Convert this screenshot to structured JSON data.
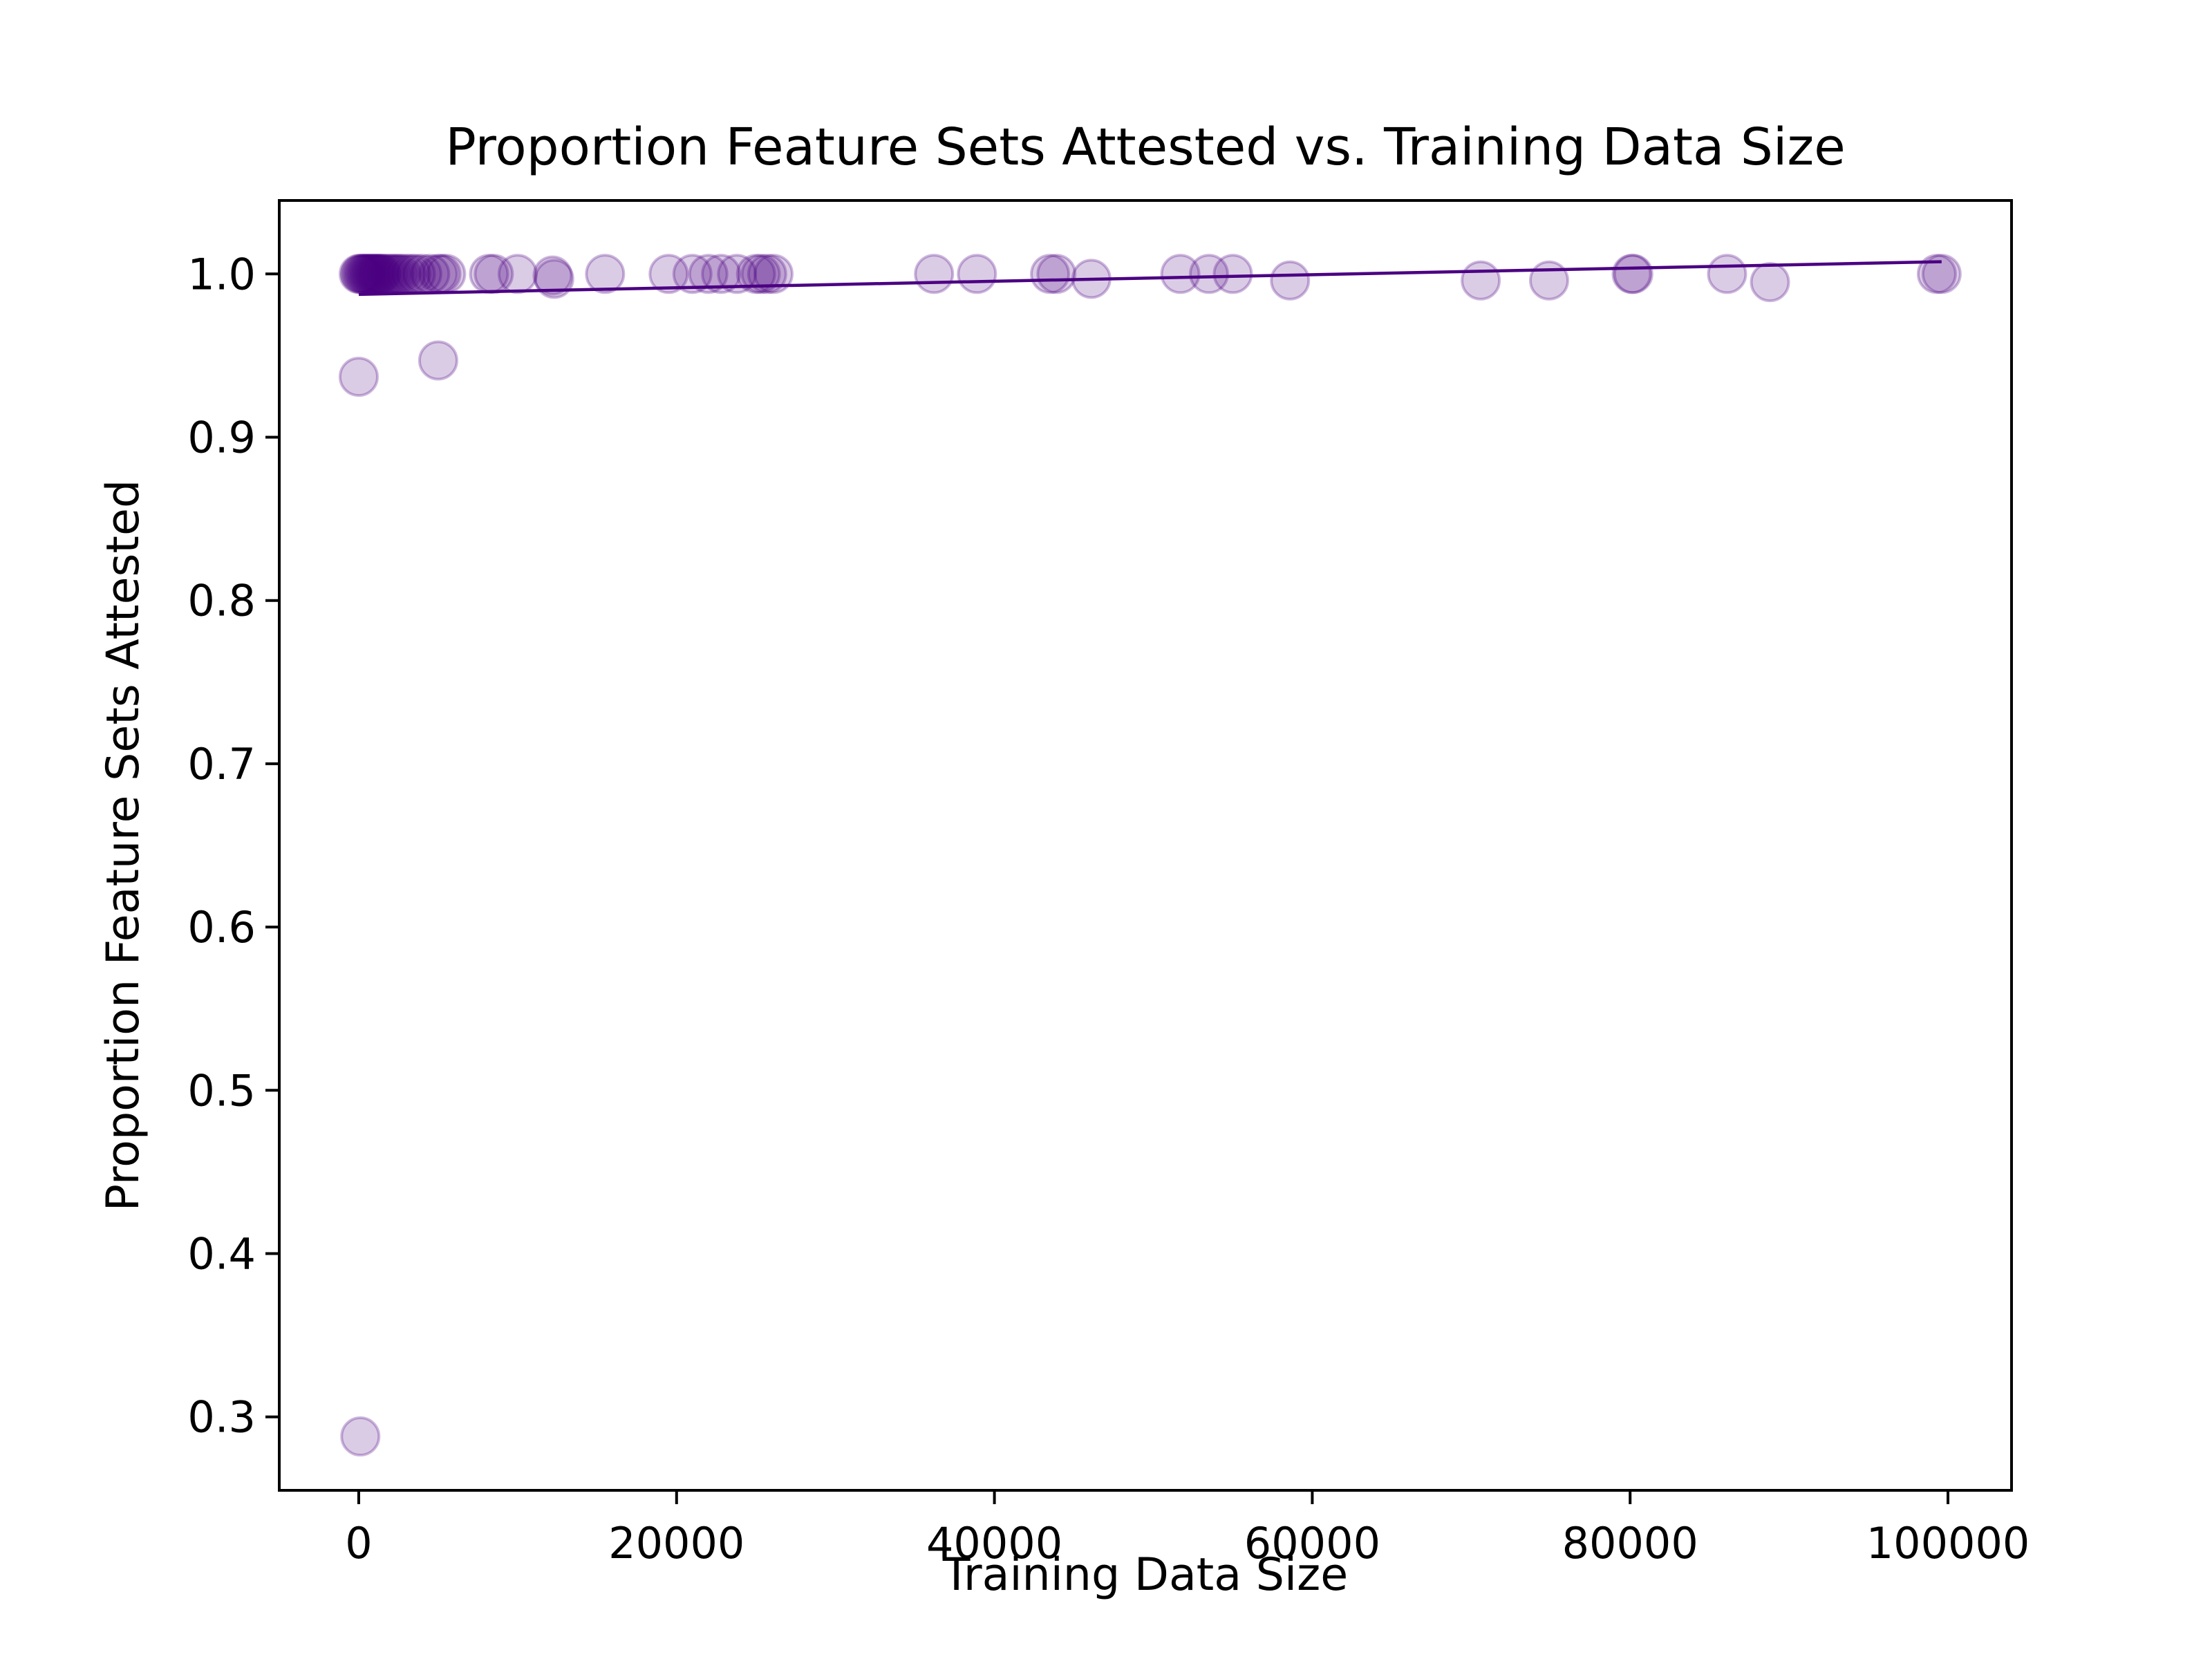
{
  "chart_data": {
    "type": "scatter",
    "title": "Proportion Feature Sets Attested vs. Training Data Size",
    "xlabel": "Training Data Size",
    "ylabel": "Proportion Feature Sets Attested",
    "xlim": [
      -5000,
      104000
    ],
    "ylim": [
      0.255,
      1.045
    ],
    "xticks": [
      0,
      20000,
      40000,
      60000,
      80000,
      100000
    ],
    "xtick_labels": [
      "0",
      "20000",
      "40000",
      "60000",
      "80000",
      "100000"
    ],
    "yticks": [
      0.3,
      0.4,
      0.5,
      0.6,
      0.7,
      0.8,
      0.9,
      1.0
    ],
    "ytick_labels": [
      "0.3",
      "0.4",
      "0.5",
      "0.6",
      "0.7",
      "0.8",
      "0.9",
      "1.0"
    ],
    "grid": false,
    "legend": "none",
    "series": [
      {
        "color": "#4b0082",
        "alpha": 0.2,
        "x": [
          0,
          100,
          200,
          300,
          400,
          500,
          600,
          700,
          800,
          900,
          1000,
          1100,
          1200,
          1300,
          1400,
          1500,
          1700,
          1900,
          2100,
          2300,
          2500,
          2700,
          3000,
          3300,
          3600,
          4000,
          4500,
          5000,
          5200,
          5500,
          8200,
          8500,
          10000,
          12200,
          12300,
          15500,
          19500,
          21000,
          22000,
          22800,
          23800,
          25000,
          25300,
          25700,
          26100,
          36200,
          38900,
          43500,
          43900,
          46100,
          51700,
          53500,
          55000,
          58600,
          70600,
          74900,
          80100,
          80200,
          86100,
          88800,
          99300,
          99600,
          0,
          5000,
          100
        ],
        "y": [
          1.0,
          1.0,
          1.0,
          1.0,
          1.0,
          1.0,
          1.0,
          1.0,
          1.0,
          1.0,
          1.0,
          1.0,
          1.0,
          1.0,
          1.0,
          1.0,
          1.0,
          1.0,
          1.0,
          1.0,
          1.0,
          1.0,
          1.0,
          1.0,
          1.0,
          1.0,
          1.0,
          1.0,
          1.0,
          1.0,
          1.0,
          1.0,
          1.0,
          0.999,
          0.997,
          1.0,
          1.0,
          1.0,
          1.0,
          1.0,
          1.0,
          1.0,
          1.0,
          1.0,
          1.0,
          1.0,
          1.0,
          1.0,
          1.0,
          0.997,
          1.0,
          1.0,
          1.0,
          0.996,
          0.996,
          0.996,
          1.0,
          1.0,
          1.0,
          0.995,
          1.0,
          1.0,
          0.937,
          0.947,
          0.288
        ]
      }
    ],
    "trend_line": {
      "color": "#4b0082",
      "x": [
        0,
        99600
      ],
      "y": [
        0.9875,
        1.0075
      ]
    }
  }
}
